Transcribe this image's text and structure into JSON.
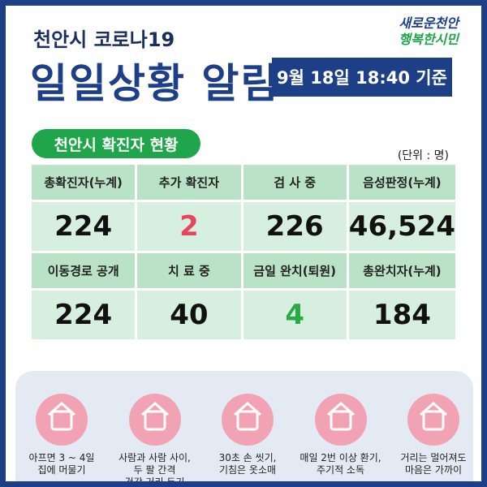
{
  "header": {
    "subtitle": "천안시 코로나19",
    "title": "일일상황 알림",
    "date": "9월 18일 18:40 기준",
    "logo": [
      "새로운천안",
      "행복한시민"
    ]
  },
  "section": {
    "title": "천안시 확진자 현황",
    "unit": "(단위 : 명)"
  },
  "table": {
    "rows": [
      [
        "총확진자(누계)",
        "추가 확진자",
        "검 사 중",
        "음성판정(누계)"
      ],
      [
        "224",
        "2",
        "226",
        "46,524"
      ],
      [
        "이동경로 공개",
        "치 료 중",
        "금일 완치(퇴원)",
        "총완치자(누계)"
      ],
      [
        "224",
        "40",
        "4",
        "184"
      ]
    ]
  },
  "tips": [
    {
      "lines": [
        "아프면 3 ~ 4일",
        "집에 머물기"
      ]
    },
    {
      "lines": [
        "사람과 사람 사이,",
        "두 팔 간격",
        "건강 거리 두기"
      ]
    },
    {
      "lines": [
        "30초 손 씻기,",
        "기침은 옷소매"
      ]
    },
    {
      "lines": [
        "매일 2번 이상 환기,",
        "주기적 소독"
      ]
    },
    {
      "lines": [
        "거리는 멀어져도",
        "마음은 가까이"
      ]
    }
  ]
}
